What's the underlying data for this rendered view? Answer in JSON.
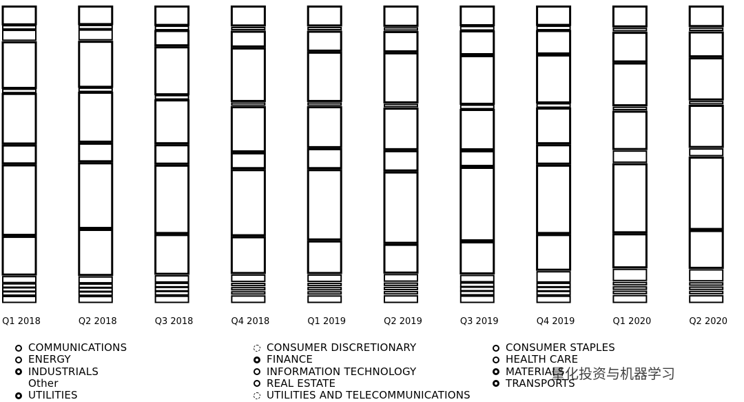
{
  "chart_data": {
    "type": "bar",
    "stacked": true,
    "description_style": "stacked sector columns, outlined segments",
    "categories": [
      "Q1 2018",
      "Q2 2018",
      "Q3 2018",
      "Q4 2018",
      "Q1 2019",
      "Q2 2019",
      "Q3 2019",
      "Q4 2019",
      "Q1 2020",
      "Q2 2020"
    ],
    "series": [
      {
        "name": "COMMUNICATIONS",
        "values": [
          2,
          2,
          2,
          2,
          2,
          2,
          2,
          2,
          2,
          2
        ]
      },
      {
        "name": "ENERGY",
        "values": [
          1,
          1,
          1,
          1,
          1,
          1,
          1,
          1,
          1,
          1
        ]
      },
      {
        "name": "INDUSTRIALS",
        "values": [
          1,
          1,
          1,
          1,
          1,
          1,
          1,
          1,
          1,
          1
        ]
      },
      {
        "name": "Other",
        "values": [
          1,
          1,
          1,
          1,
          1,
          1,
          1,
          1,
          1,
          1
        ]
      },
      {
        "name": "UTILITIES",
        "values": [
          2,
          2,
          2,
          2,
          2,
          2,
          2,
          3,
          3,
          3
        ]
      },
      {
        "name": "CONSUMER DISCRETIONARY",
        "values": [
          10,
          12,
          10,
          9,
          8,
          7,
          8,
          9,
          8,
          9
        ]
      },
      {
        "name": "FINANCE",
        "values": [
          18,
          17,
          17,
          16,
          17,
          17,
          18,
          17,
          16,
          17
        ]
      },
      {
        "name": "INFORMATION TECHNOLOGY",
        "values": [
          5,
          5,
          5,
          4,
          5,
          5,
          4,
          5,
          3,
          2
        ]
      },
      {
        "name": "REAL ESTATE",
        "values": [
          13,
          13,
          11,
          11,
          10,
          10,
          10,
          9,
          9,
          10
        ]
      },
      {
        "name": "UTILITIES AND TELECOMMUNICATIONS",
        "values": [
          1,
          1,
          1,
          1,
          1,
          1,
          1,
          1,
          1,
          1
        ]
      },
      {
        "name": "CONSUMER STAPLES",
        "values": [
          12,
          12,
          12,
          13,
          12,
          12,
          12,
          12,
          10,
          10
        ]
      },
      {
        "name": "HEALTH CARE",
        "values": [
          3,
          3,
          4,
          4,
          5,
          5,
          6,
          6,
          7,
          6
        ]
      },
      {
        "name": "MATERIALS",
        "values": [
          1,
          1,
          1,
          1,
          1,
          1,
          1,
          1,
          1,
          1
        ]
      },
      {
        "name": "TRANSPORTS",
        "values": [
          5,
          5,
          5,
          5,
          5,
          5,
          5,
          5,
          5,
          5
        ]
      }
    ],
    "xlabel": "",
    "ylabel": "",
    "grid": false,
    "legend_position": "bottom"
  },
  "legend": {
    "col1": [
      "COMMUNICATIONS",
      "ENERGY",
      "INDUSTRIALS",
      "Other",
      "UTILITIES"
    ],
    "col2": [
      "CONSUMER DISCRETIONARY",
      "FINANCE",
      "INFORMATION TECHNOLOGY",
      "REAL ESTATE",
      "UTILITIES AND TELECOMMUNICATIONS"
    ],
    "col3": [
      "CONSUMER STAPLES",
      "HEALTH CARE",
      "MATERIALS",
      "TRANSPORTS"
    ]
  },
  "watermark": "量化投资与机器学习"
}
